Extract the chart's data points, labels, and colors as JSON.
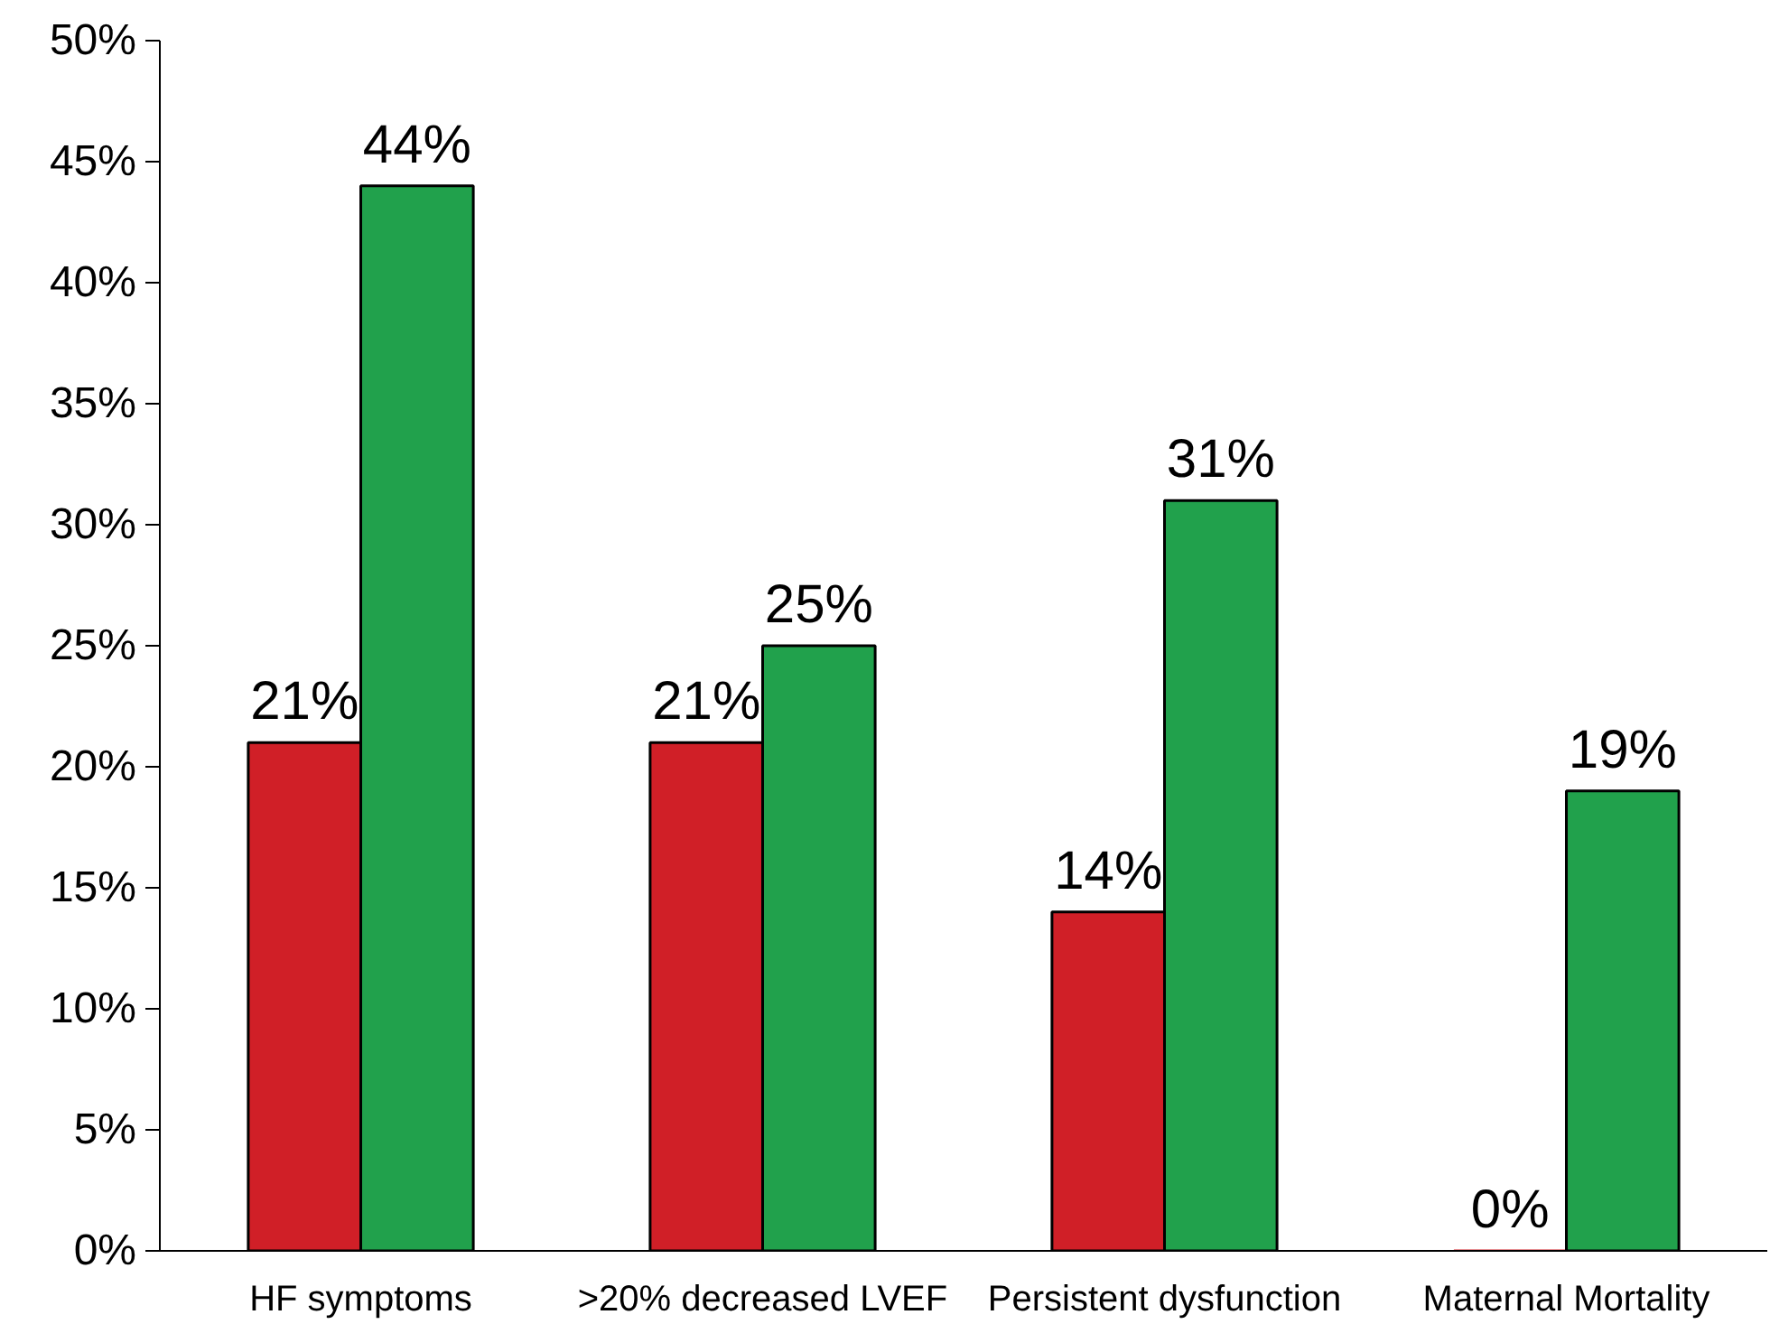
{
  "chart_data": {
    "type": "bar",
    "categories": [
      "HF symptoms",
      ">20% decreased LVEF",
      "Persistent dysfunction",
      "Maternal Mortality"
    ],
    "series": [
      {
        "color": "#d01f27",
        "values": [
          21,
          21,
          14,
          0
        ],
        "value_labels": [
          "21%",
          "21%",
          "14%",
          "0%"
        ]
      },
      {
        "color": "#21a14c",
        "values": [
          44,
          25,
          31,
          19
        ],
        "value_labels": [
          "44%",
          "25%",
          "31%",
          "19%"
        ]
      }
    ],
    "ylim": [
      0,
      50
    ],
    "yticks": [
      {
        "value": 0,
        "label": "0%"
      },
      {
        "value": 5,
        "label": "5%"
      },
      {
        "value": 10,
        "label": "10%"
      },
      {
        "value": 15,
        "label": "15%"
      },
      {
        "value": 20,
        "label": "20%"
      },
      {
        "value": 25,
        "label": "25%"
      },
      {
        "value": 30,
        "label": "30%"
      },
      {
        "value": 35,
        "label": "35%"
      },
      {
        "value": 40,
        "label": "40%"
      },
      {
        "value": 45,
        "label": "45%"
      },
      {
        "value": 50,
        "label": "50%"
      }
    ],
    "grid": false
  }
}
